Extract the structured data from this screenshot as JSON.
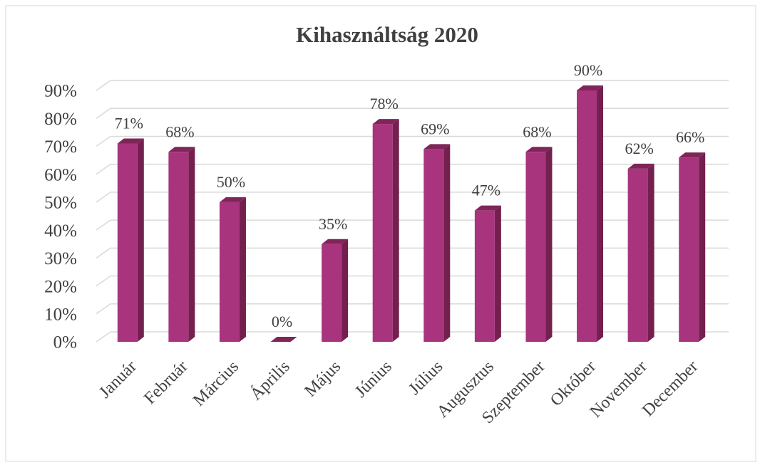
{
  "chart_data": {
    "type": "bar3d",
    "title": "Kihasználtság 2020",
    "categories": [
      "Január",
      "Február",
      "Március",
      "Április",
      "Május",
      "Június",
      "Július",
      "Augusztus",
      "Szeptember",
      "Október",
      "November",
      "December"
    ],
    "values": [
      71,
      68,
      50,
      0,
      35,
      78,
      69,
      47,
      68,
      90,
      62,
      66
    ],
    "value_labels": [
      "71%",
      "68%",
      "50%",
      "0%",
      "35%",
      "78%",
      "69%",
      "47%",
      "68%",
      "90%",
      "62%",
      "66%"
    ],
    "color": "#a8347d",
    "ylim": [
      0,
      90
    ],
    "yticks": [
      {
        "value": 0,
        "label": "0%"
      },
      {
        "value": 10,
        "label": "10%"
      },
      {
        "value": 20,
        "label": "20%"
      },
      {
        "value": 30,
        "label": "30%"
      },
      {
        "value": 40,
        "label": "40%"
      },
      {
        "value": 50,
        "label": "50%"
      },
      {
        "value": 60,
        "label": "60%"
      },
      {
        "value": 70,
        "label": "70%"
      },
      {
        "value": 80,
        "label": "80%"
      },
      {
        "value": 90,
        "label": "90%"
      }
    ],
    "grid": true
  }
}
